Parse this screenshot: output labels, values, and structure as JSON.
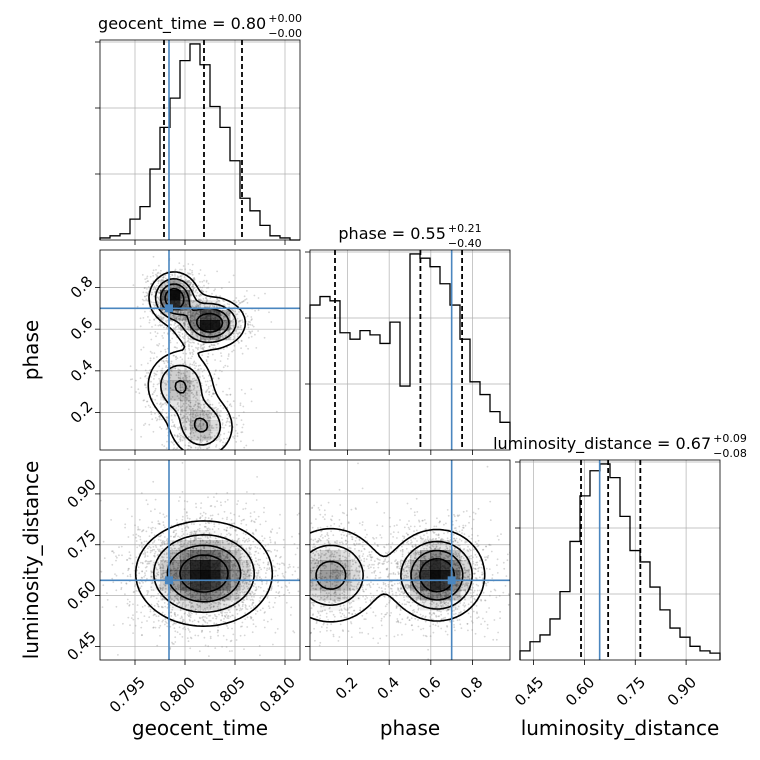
{
  "figure": {
    "type": "corner_plot"
  },
  "chart_data": [
    {
      "type": "histogram",
      "panel": "geocent_time",
      "title": {
        "main": "geocent_time = 0.80",
        "sup": "+0.00",
        "sub": "−0.00"
      },
      "xlim": [
        0.7915,
        0.8115
      ],
      "bin_edges": [
        0.7915,
        0.7925,
        0.7935,
        0.7945,
        0.7955,
        0.7965,
        0.7975,
        0.7985,
        0.7995,
        0.8005,
        0.8015,
        0.8025,
        0.8035,
        0.8045,
        0.8055,
        0.8065,
        0.8075,
        0.8085,
        0.8095,
        0.8105,
        0.8115
      ],
      "counts": [
        1,
        2,
        3,
        10,
        16,
        34,
        54,
        68,
        86,
        94,
        84,
        64,
        54,
        38,
        20,
        14,
        7,
        2,
        1,
        0
      ],
      "quantiles": [
        0.7979,
        0.8019,
        0.8057
      ],
      "truth": 0.7984,
      "grid": true
    },
    {
      "type": "histogram",
      "panel": "phase",
      "title": {
        "main": "phase = 0.55",
        "sup": "+0.21",
        "sub": "−0.40"
      },
      "xlim": [
        0.02,
        0.98
      ],
      "bin_edges": [
        0.02,
        0.068,
        0.116,
        0.164,
        0.212,
        0.26,
        0.308,
        0.356,
        0.404,
        0.452,
        0.5,
        0.548,
        0.596,
        0.644,
        0.692,
        0.74,
        0.788,
        0.836,
        0.884,
        0.932,
        0.98
      ],
      "counts": [
        68,
        72,
        70,
        55,
        52,
        56,
        54,
        50,
        60,
        30,
        92,
        90,
        86,
        78,
        68,
        52,
        32,
        26,
        18,
        13
      ],
      "quantiles": [
        0.14,
        0.55,
        0.75
      ],
      "truth": 0.7,
      "grid": true
    },
    {
      "type": "histogram",
      "panel": "luminosity_distance",
      "title": {
        "main": "luminosity_distance = 0.67",
        "sup": "+0.09",
        "sub": "−0.08"
      },
      "xlim": [
        0.41,
        1.0
      ],
      "bin_edges": [
        0.41,
        0.4395,
        0.469,
        0.4985,
        0.528,
        0.5575,
        0.587,
        0.6165,
        0.646,
        0.6755,
        0.705,
        0.7345,
        0.764,
        0.7935,
        0.823,
        0.8525,
        0.882,
        0.9115,
        0.941,
        0.9705,
        1.0
      ],
      "counts": [
        4,
        8,
        11,
        18,
        30,
        52,
        72,
        83,
        86,
        80,
        63,
        48,
        43,
        32,
        22,
        14,
        10,
        6,
        4,
        3
      ],
      "quantiles": [
        0.59,
        0.67,
        0.765
      ],
      "truth": 0.645,
      "grid": true
    },
    {
      "type": "density2d",
      "panel": "phase_vs_geocent_time",
      "xlim": [
        0.7915,
        0.8115
      ],
      "ylim": [
        0.02,
        0.98
      ],
      "truth": [
        0.7984,
        0.7
      ],
      "modes": [
        {
          "x": 0.7989,
          "y": 0.75,
          "sx": 0.0012,
          "sy": 0.06,
          "w": 1.0
        },
        {
          "x": 0.8025,
          "y": 0.63,
          "sx": 0.0017,
          "sy": 0.06,
          "w": 1.0
        },
        {
          "x": 0.7995,
          "y": 0.33,
          "sx": 0.0018,
          "sy": 0.09,
          "w": 0.55
        },
        {
          "x": 0.8017,
          "y": 0.13,
          "sx": 0.0017,
          "sy": 0.08,
          "w": 0.55
        }
      ],
      "grid": true
    },
    {
      "type": "density2d",
      "panel": "luminosity_distance_vs_geocent_time",
      "xlim": [
        0.7915,
        0.8115
      ],
      "ylim": [
        0.41,
        1.0
      ],
      "truth": [
        0.7984,
        0.645
      ],
      "modes": [
        {
          "x": 0.8019,
          "y": 0.665,
          "sx": 0.0033,
          "sy": 0.075,
          "w": 1.0
        }
      ],
      "grid": true
    },
    {
      "type": "density2d",
      "panel": "luminosity_distance_vs_phase",
      "xlim": [
        0.02,
        0.98
      ],
      "ylim": [
        0.41,
        1.0
      ],
      "truth": [
        0.7,
        0.645
      ],
      "modes": [
        {
          "x": 0.63,
          "y": 0.66,
          "sx": 0.11,
          "sy": 0.065,
          "w": 1.0
        },
        {
          "x": 0.12,
          "y": 0.66,
          "sx": 0.13,
          "sy": 0.075,
          "w": 0.62
        }
      ],
      "grid": true
    }
  ],
  "axes": {
    "x_labels": [
      "geocent_time",
      "phase",
      "luminosity_distance"
    ],
    "y_labels": [
      "",
      "phase",
      "luminosity_distance"
    ],
    "x_ticks": [
      [
        {
          "v": 0.795,
          "label": "0.795"
        },
        {
          "v": 0.8,
          "label": "0.800"
        },
        {
          "v": 0.805,
          "label": "0.805"
        },
        {
          "v": 0.81,
          "label": "0.810"
        }
      ],
      [
        {
          "v": 0.2,
          "label": "0.2"
        },
        {
          "v": 0.4,
          "label": "0.4"
        },
        {
          "v": 0.6,
          "label": "0.6"
        },
        {
          "v": 0.8,
          "label": "0.8"
        }
      ],
      [
        {
          "v": 0.45,
          "label": "0.45"
        },
        {
          "v": 0.6,
          "label": "0.60"
        },
        {
          "v": 0.75,
          "label": "0.75"
        },
        {
          "v": 0.9,
          "label": "0.90"
        }
      ]
    ],
    "y_ticks": [
      [],
      [
        {
          "v": 0.2,
          "label": "0.2"
        },
        {
          "v": 0.4,
          "label": "0.4"
        },
        {
          "v": 0.6,
          "label": "0.6"
        },
        {
          "v": 0.8,
          "label": "0.8"
        }
      ],
      [
        {
          "v": 0.45,
          "label": "0.45"
        },
        {
          "v": 0.6,
          "label": "0.60"
        },
        {
          "v": 0.75,
          "label": "0.75"
        },
        {
          "v": 0.9,
          "label": "0.90"
        }
      ]
    ]
  },
  "colors": {
    "truth": "#4a86bf",
    "contour": "#000000",
    "grid": "#b0b0b0",
    "hist": "#000000",
    "quantile": "#000000",
    "scatter": "#8a8a8a",
    "density": "#000000"
  }
}
